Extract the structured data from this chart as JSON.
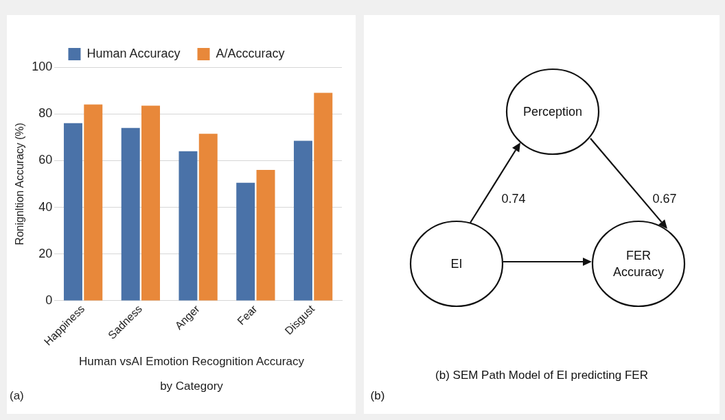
{
  "chart_data": [
    {
      "type": "bar",
      "title": "Human vsAI Emotion Recognition Accuracy by Category",
      "ylabel": "Ronignltion Accuracy (%)",
      "categories": [
        "Happiness",
        "Sadness",
        "Anger",
        "Fear",
        "Disgust"
      ],
      "series": [
        {
          "name": "Human Accuracy",
          "color": "#4a72a8",
          "values": [
            76,
            74,
            64,
            50.5,
            68.5
          ]
        },
        {
          "name": "A/Acccuracy",
          "color": "#e8883a",
          "values": [
            84,
            83.5,
            71.5,
            56,
            89
          ]
        }
      ],
      "ylim": [
        0,
        100
      ],
      "yticks": [
        0,
        20,
        40,
        60,
        80,
        100
      ],
      "grid": "y",
      "legend": "top",
      "annotations": [
        "(a)"
      ]
    },
    {
      "type": "other",
      "title": "(b) SEM Path Model of EI predicting FER",
      "annotations": [
        "Perception",
        "EI",
        "FER Accuracy",
        "0.74",
        "0.67",
        "(b)"
      ]
    }
  ]
}
